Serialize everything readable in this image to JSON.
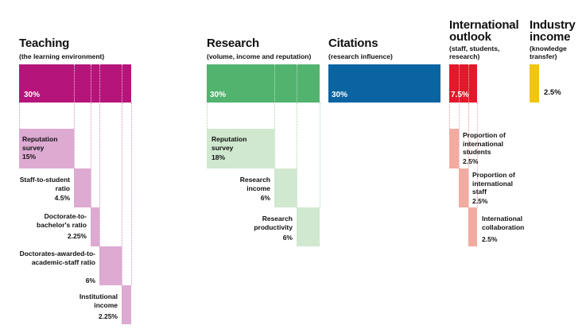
{
  "colors": {
    "teaching_main": "#b5157a",
    "teaching_sub": "#ddaad2",
    "research_main": "#52b36e",
    "research_sub": "#cfe8cf",
    "citations": "#0b64a2",
    "international_main": "#e4182b",
    "international_sub": "#f2aba1",
    "industry": "#f3c412"
  },
  "teaching": {
    "title": "Teaching",
    "subtitle": "(the learning environment)",
    "pct": "30%",
    "subs": [
      {
        "label": "Reputation survey",
        "pct": "15%"
      },
      {
        "label": "Staff-to-student ratio",
        "pct": "4.5%"
      },
      {
        "label": "Doctorate-to-bachelor's ratio",
        "pct": "2.25%"
      },
      {
        "label": "Doctorates-awarded-to-academic-staff ratio",
        "pct": "6%"
      },
      {
        "label": "Institutional income",
        "pct": "2.25%"
      }
    ]
  },
  "research": {
    "title": "Research",
    "subtitle": "(volume, income and reputation)",
    "pct": "30%",
    "subs": [
      {
        "label": "Reputation survey",
        "pct": "18%"
      },
      {
        "label": "Research income",
        "pct": "6%"
      },
      {
        "label": "Research productivity",
        "pct": "6%"
      }
    ]
  },
  "citations": {
    "title": "Citations",
    "subtitle": "(research influence)",
    "pct": "30%"
  },
  "international": {
    "title": "International outlook",
    "subtitle": "(staff, students, research)",
    "pct": "7.5%",
    "subs": [
      {
        "label": "Proportion of international students",
        "pct": "2.5%"
      },
      {
        "label": "Proportion of international staff",
        "pct": "2.5%"
      },
      {
        "label": "International collaboration",
        "pct": "2.5%"
      }
    ]
  },
  "industry": {
    "title": "Industry income",
    "subtitle": "(knowledge transfer)",
    "pct": "2.5%"
  }
}
